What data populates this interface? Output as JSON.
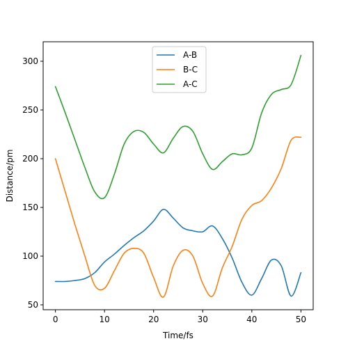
{
  "chart_data": {
    "type": "line",
    "title": "",
    "xlabel": "Time/fs",
    "ylabel": "Distance/pm",
    "xlim": [
      -2.5,
      52.5
    ],
    "ylim": [
      45,
      320
    ],
    "xticks": [
      0,
      10,
      20,
      30,
      40,
      50
    ],
    "yticks": [
      50,
      100,
      150,
      200,
      250,
      300
    ],
    "legend_position": "top-center",
    "grid": false,
    "series": [
      {
        "name": "A-B",
        "color": "#1f77b4",
        "x": [
          0,
          2,
          4,
          6,
          8,
          10,
          12,
          14,
          16,
          18,
          20,
          22,
          24,
          26,
          28,
          30,
          32,
          34,
          36,
          38,
          40,
          42,
          44,
          46,
          48,
          50
        ],
        "y": [
          74,
          74,
          75,
          77,
          83,
          94,
          102,
          111,
          119,
          126,
          136,
          148,
          139,
          129,
          126,
          125,
          131,
          118,
          98,
          73,
          60,
          77,
          96,
          90,
          59,
          83
        ]
      },
      {
        "name": "B-C",
        "color": "#ff7f0e",
        "x": [
          0,
          2,
          4,
          6,
          8,
          10,
          12,
          14,
          16,
          18,
          20,
          22,
          24,
          26,
          28,
          30,
          32,
          34,
          36,
          38,
          40,
          42,
          44,
          46,
          48,
          50
        ],
        "y": [
          200,
          166,
          132,
          100,
          70,
          67,
          85,
          103,
          108,
          103,
          78,
          58,
          90,
          106,
          100,
          72,
          59,
          88,
          110,
          138,
          152,
          157,
          170,
          190,
          219,
          222
        ]
      },
      {
        "name": "A-C",
        "color": "#2ca02c",
        "x": [
          0,
          2,
          4,
          6,
          8,
          10,
          12,
          14,
          16,
          18,
          20,
          22,
          24,
          26,
          28,
          30,
          32,
          34,
          36,
          38,
          40,
          42,
          44,
          46,
          48,
          50
        ],
        "y": [
          274,
          247,
          219,
          191,
          166,
          160,
          184,
          215,
          228,
          227,
          215,
          206,
          221,
          233,
          228,
          205,
          189,
          197,
          205,
          204,
          211,
          247,
          266,
          271,
          276,
          306
        ]
      }
    ]
  }
}
